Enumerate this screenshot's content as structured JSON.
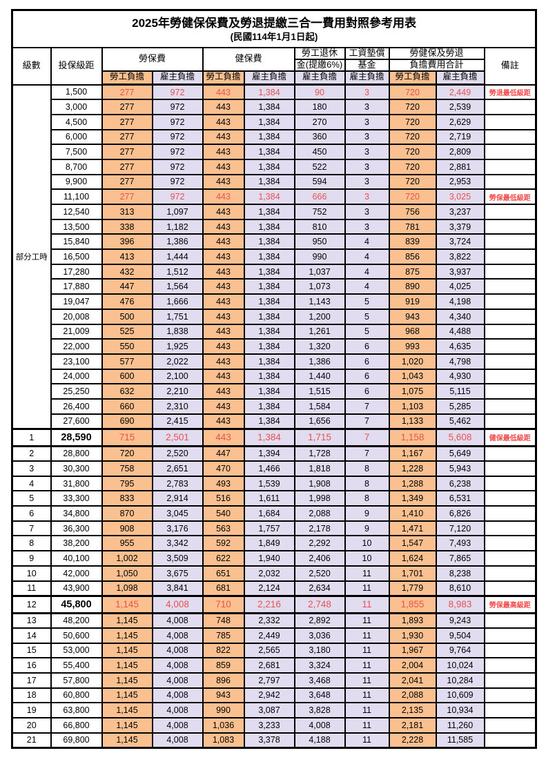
{
  "title": "2025年勞健保保費及勞退提繳三合一費用對照參考用表",
  "subtitle": "(民國114年1月1日起)",
  "header": {
    "level": "級數",
    "bracket": "投保級距",
    "labor_ins": "勞保費",
    "health_ins": "健保費",
    "pension_line1": "勞工退休",
    "pension_line2": "金(提繳6%)",
    "wage_fund_line1": "工資墊償",
    "wage_fund_line2": "基金",
    "total_line1": "勞健保及勞退",
    "total_line2": "負擔費用合計",
    "remark": "備註",
    "employee": "勞工負擔",
    "employer": "雇主負擔"
  },
  "part_time": {
    "label": "部分工時",
    "rowspan": 23
  },
  "colors": {
    "employee_bg": "#FAC090",
    "employer_bg": "#E1DCF0",
    "red_value": "#E8524E",
    "red_remark": "#F24B4B",
    "border": "#000000"
  },
  "rows": [
    {
      "level": "",
      "bracket": "1,500",
      "values": [
        "277",
        "972",
        "443",
        "1,384",
        "90",
        "3",
        "720",
        "2,449"
      ],
      "remark": "勞退最低級距",
      "red": true
    },
    {
      "level": "",
      "bracket": "3,000",
      "values": [
        "277",
        "972",
        "443",
        "1,384",
        "180",
        "3",
        "720",
        "2,539"
      ]
    },
    {
      "level": "",
      "bracket": "4,500",
      "values": [
        "277",
        "972",
        "443",
        "1,384",
        "270",
        "3",
        "720",
        "2,629"
      ]
    },
    {
      "level": "",
      "bracket": "6,000",
      "values": [
        "277",
        "972",
        "443",
        "1,384",
        "360",
        "3",
        "720",
        "2,719"
      ]
    },
    {
      "level": "",
      "bracket": "7,500",
      "values": [
        "277",
        "972",
        "443",
        "1,384",
        "450",
        "3",
        "720",
        "2,809"
      ]
    },
    {
      "level": "",
      "bracket": "8,700",
      "values": [
        "277",
        "972",
        "443",
        "1,384",
        "522",
        "3",
        "720",
        "2,881"
      ]
    },
    {
      "level": "",
      "bracket": "9,900",
      "values": [
        "277",
        "972",
        "443",
        "1,384",
        "594",
        "3",
        "720",
        "2,953"
      ]
    },
    {
      "level": "",
      "bracket": "11,100",
      "values": [
        "277",
        "972",
        "443",
        "1,384",
        "666",
        "3",
        "720",
        "3,025"
      ],
      "remark": "勞保最低級距",
      "red": true
    },
    {
      "level": "",
      "bracket": "12,540",
      "values": [
        "313",
        "1,097",
        "443",
        "1,384",
        "752",
        "3",
        "756",
        "3,237"
      ]
    },
    {
      "level": "",
      "bracket": "13,500",
      "values": [
        "338",
        "1,182",
        "443",
        "1,384",
        "810",
        "3",
        "781",
        "3,379"
      ]
    },
    {
      "level": "",
      "bracket": "15,840",
      "values": [
        "396",
        "1,386",
        "443",
        "1,384",
        "950",
        "4",
        "839",
        "3,724"
      ]
    },
    {
      "level": "",
      "bracket": "16,500",
      "values": [
        "413",
        "1,444",
        "443",
        "1,384",
        "990",
        "4",
        "856",
        "3,822"
      ]
    },
    {
      "level": "",
      "bracket": "17,280",
      "values": [
        "432",
        "1,512",
        "443",
        "1,384",
        "1,037",
        "4",
        "875",
        "3,937"
      ]
    },
    {
      "level": "",
      "bracket": "17,880",
      "values": [
        "447",
        "1,564",
        "443",
        "1,384",
        "1,073",
        "4",
        "890",
        "4,025"
      ]
    },
    {
      "level": "",
      "bracket": "19,047",
      "values": [
        "476",
        "1,666",
        "443",
        "1,384",
        "1,143",
        "5",
        "919",
        "4,198"
      ]
    },
    {
      "level": "",
      "bracket": "20,008",
      "values": [
        "500",
        "1,751",
        "443",
        "1,384",
        "1,200",
        "5",
        "943",
        "4,340"
      ]
    },
    {
      "level": "",
      "bracket": "21,009",
      "values": [
        "525",
        "1,838",
        "443",
        "1,384",
        "1,261",
        "5",
        "968",
        "4,488"
      ]
    },
    {
      "level": "",
      "bracket": "22,000",
      "values": [
        "550",
        "1,925",
        "443",
        "1,384",
        "1,320",
        "6",
        "993",
        "4,635"
      ]
    },
    {
      "level": "",
      "bracket": "23,100",
      "values": [
        "577",
        "2,022",
        "443",
        "1,384",
        "1,386",
        "6",
        "1,020",
        "4,798"
      ]
    },
    {
      "level": "",
      "bracket": "24,000",
      "values": [
        "600",
        "2,100",
        "443",
        "1,384",
        "1,440",
        "6",
        "1,043",
        "4,930"
      ]
    },
    {
      "level": "",
      "bracket": "25,250",
      "values": [
        "632",
        "2,210",
        "443",
        "1,384",
        "1,515",
        "6",
        "1,075",
        "5,115"
      ]
    },
    {
      "level": "",
      "bracket": "26,400",
      "values": [
        "660",
        "2,310",
        "443",
        "1,384",
        "1,584",
        "7",
        "1,103",
        "5,285"
      ]
    },
    {
      "level": "",
      "bracket": "27,600",
      "values": [
        "690",
        "2,415",
        "443",
        "1,384",
        "1,656",
        "7",
        "1,133",
        "5,462"
      ]
    },
    {
      "level": "1",
      "bracket": "28,590",
      "values": [
        "715",
        "2,501",
        "443",
        "1,384",
        "1,715",
        "7",
        "1,158",
        "5,608"
      ],
      "remark": "健保最低級距",
      "red": true,
      "big": true
    },
    {
      "level": "2",
      "bracket": "28,800",
      "values": [
        "720",
        "2,520",
        "447",
        "1,394",
        "1,728",
        "7",
        "1,167",
        "5,649"
      ]
    },
    {
      "level": "3",
      "bracket": "30,300",
      "values": [
        "758",
        "2,651",
        "470",
        "1,466",
        "1,818",
        "8",
        "1,228",
        "5,943"
      ]
    },
    {
      "level": "4",
      "bracket": "31,800",
      "values": [
        "795",
        "2,783",
        "493",
        "1,539",
        "1,908",
        "8",
        "1,288",
        "6,238"
      ]
    },
    {
      "level": "5",
      "bracket": "33,300",
      "values": [
        "833",
        "2,914",
        "516",
        "1,611",
        "1,998",
        "8",
        "1,349",
        "6,531"
      ]
    },
    {
      "level": "6",
      "bracket": "34,800",
      "values": [
        "870",
        "3,045",
        "540",
        "1,684",
        "2,088",
        "9",
        "1,410",
        "6,826"
      ]
    },
    {
      "level": "7",
      "bracket": "36,300",
      "values": [
        "908",
        "3,176",
        "563",
        "1,757",
        "2,178",
        "9",
        "1,471",
        "7,120"
      ]
    },
    {
      "level": "8",
      "bracket": "38,200",
      "values": [
        "955",
        "3,342",
        "592",
        "1,849",
        "2,292",
        "10",
        "1,547",
        "7,493"
      ]
    },
    {
      "level": "9",
      "bracket": "40,100",
      "values": [
        "1,002",
        "3,509",
        "622",
        "1,940",
        "2,406",
        "10",
        "1,624",
        "7,865"
      ]
    },
    {
      "level": "10",
      "bracket": "42,000",
      "values": [
        "1,050",
        "3,675",
        "651",
        "2,032",
        "2,520",
        "11",
        "1,701",
        "8,238"
      ]
    },
    {
      "level": "11",
      "bracket": "43,900",
      "values": [
        "1,098",
        "3,841",
        "681",
        "2,124",
        "2,634",
        "11",
        "1,779",
        "8,610"
      ]
    },
    {
      "level": "12",
      "bracket": "45,800",
      "values": [
        "1,145",
        "4,008",
        "710",
        "2,216",
        "2,748",
        "11",
        "1,855",
        "8,983"
      ],
      "remark": "勞保最高級距",
      "red": true,
      "big": true
    },
    {
      "level": "13",
      "bracket": "48,200",
      "values": [
        "1,145",
        "4,008",
        "748",
        "2,332",
        "2,892",
        "11",
        "1,893",
        "9,243"
      ]
    },
    {
      "level": "14",
      "bracket": "50,600",
      "values": [
        "1,145",
        "4,008",
        "785",
        "2,449",
        "3,036",
        "11",
        "1,930",
        "9,504"
      ]
    },
    {
      "level": "15",
      "bracket": "53,000",
      "values": [
        "1,145",
        "4,008",
        "822",
        "2,565",
        "3,180",
        "11",
        "1,967",
        "9,764"
      ]
    },
    {
      "level": "16",
      "bracket": "55,400",
      "values": [
        "1,145",
        "4,008",
        "859",
        "2,681",
        "3,324",
        "11",
        "2,004",
        "10,024"
      ]
    },
    {
      "level": "17",
      "bracket": "57,800",
      "values": [
        "1,145",
        "4,008",
        "896",
        "2,797",
        "3,468",
        "11",
        "2,041",
        "10,284"
      ]
    },
    {
      "level": "18",
      "bracket": "60,800",
      "values": [
        "1,145",
        "4,008",
        "943",
        "2,942",
        "3,648",
        "11",
        "2,088",
        "10,609"
      ]
    },
    {
      "level": "19",
      "bracket": "63,800",
      "values": [
        "1,145",
        "4,008",
        "990",
        "3,087",
        "3,828",
        "11",
        "2,135",
        "10,934"
      ]
    },
    {
      "level": "20",
      "bracket": "66,800",
      "values": [
        "1,145",
        "4,008",
        "1,036",
        "3,233",
        "4,008",
        "11",
        "2,181",
        "11,260"
      ]
    },
    {
      "level": "21",
      "bracket": "69,800",
      "values": [
        "1,145",
        "4,008",
        "1,083",
        "3,378",
        "4,188",
        "11",
        "2,228",
        "11,585"
      ]
    }
  ]
}
